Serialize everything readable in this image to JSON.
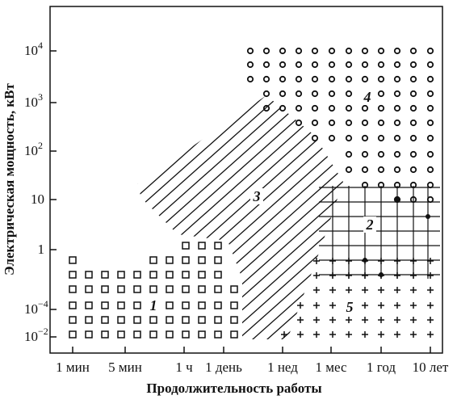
{
  "x_axis": {
    "label": "Продолжительность работы",
    "ticks": [
      "1 мин",
      "5 мин",
      "1 ч",
      "1 день",
      "1 нед",
      "1 мес",
      "1 год",
      "10 лет"
    ]
  },
  "y_axis": {
    "label": "Электрическая мощность, кВт",
    "ticks": [
      {
        "base": "10",
        "exp": "4"
      },
      {
        "base": "10",
        "exp": "3"
      },
      {
        "base": "10",
        "exp": "2"
      },
      {
        "base": "10"
      },
      {
        "base": "1"
      },
      {
        "base": "10",
        "exp": "−4"
      },
      {
        "base": "10",
        "exp": "−2"
      }
    ]
  },
  "regions": [
    "1",
    "2",
    "3",
    "4",
    "5"
  ]
}
